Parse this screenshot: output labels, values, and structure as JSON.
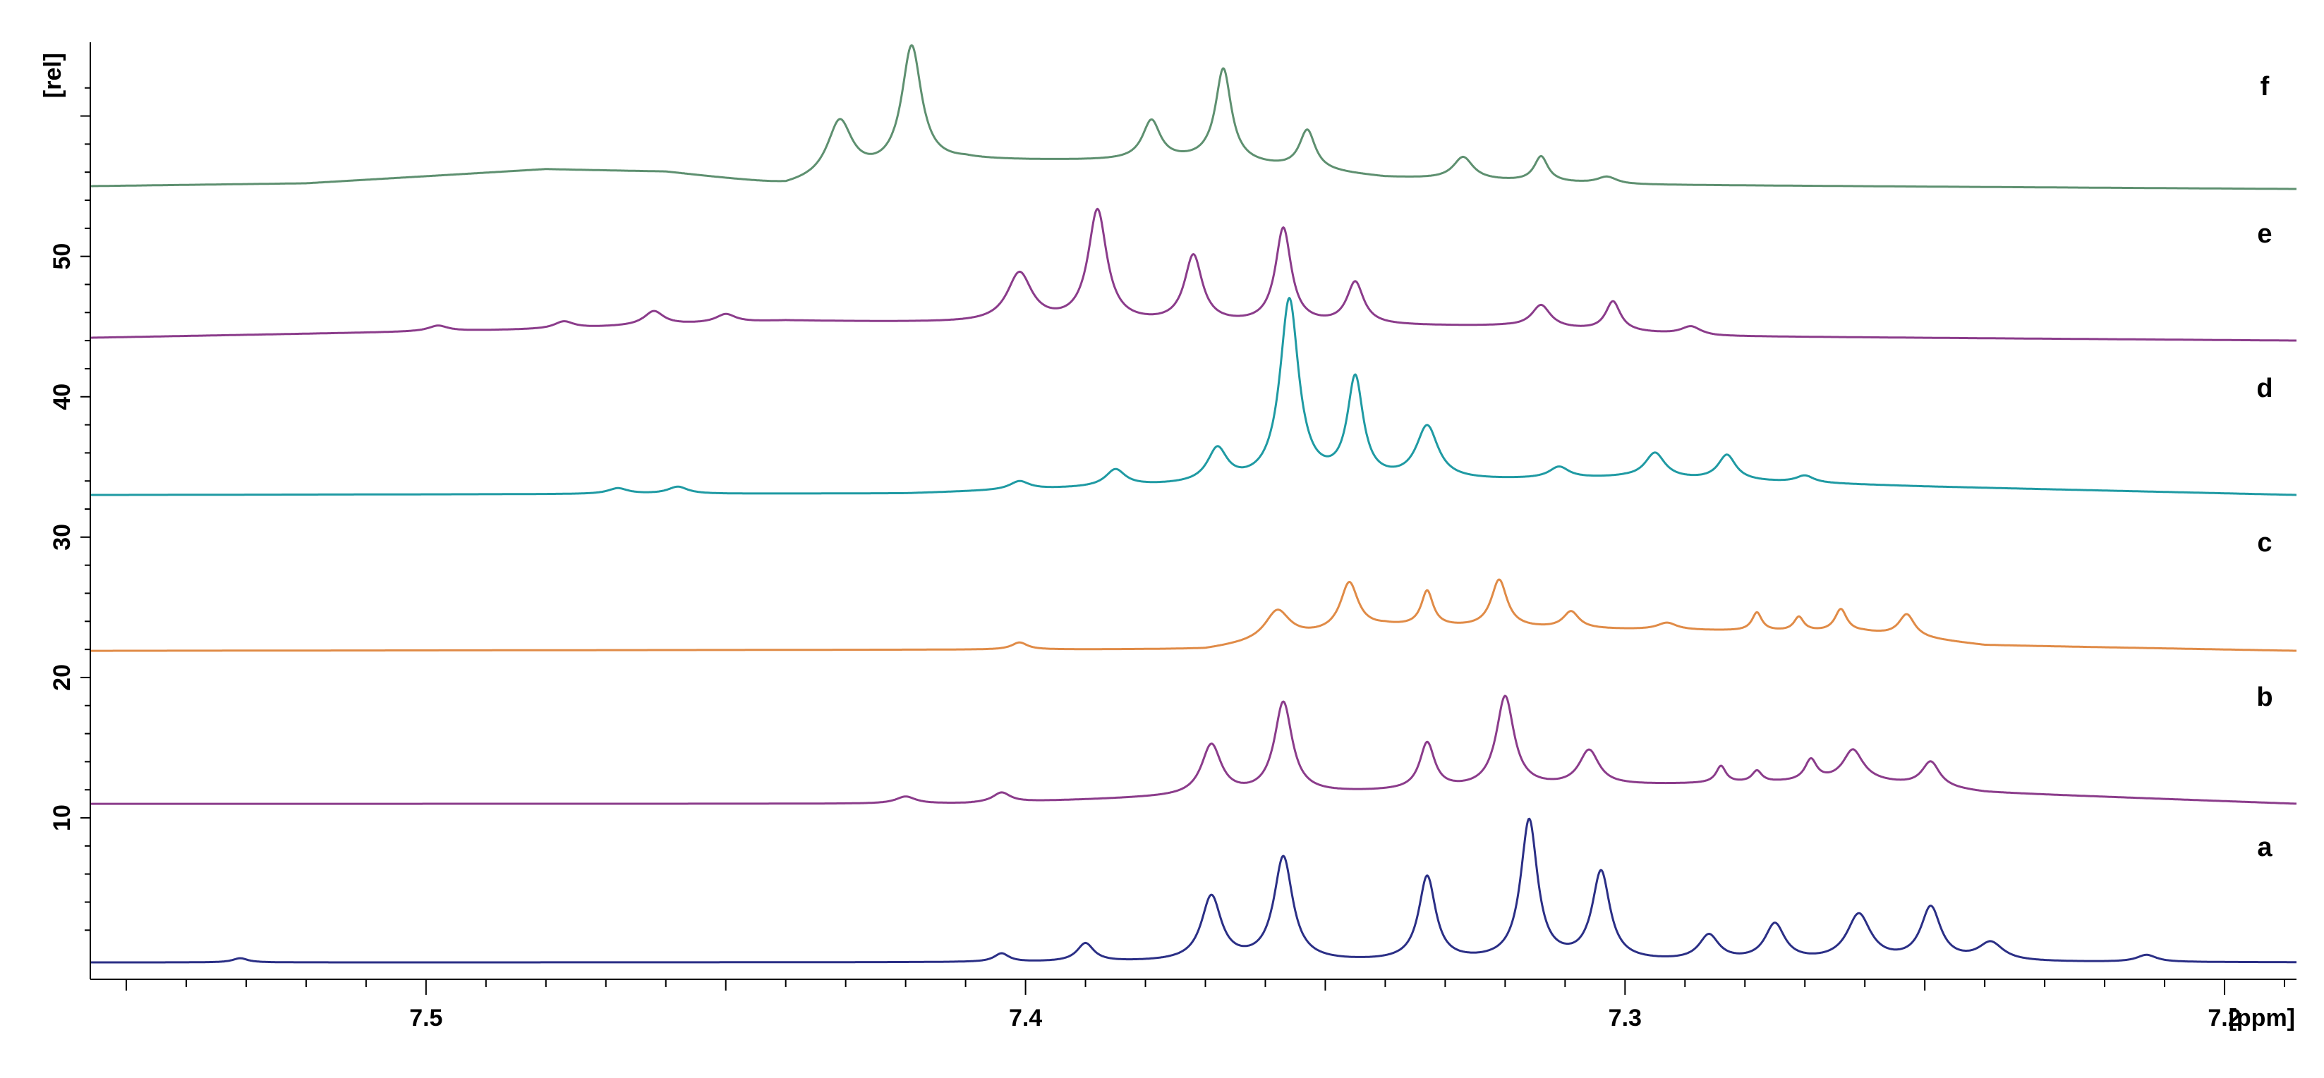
{
  "chart_data": {
    "type": "line",
    "title": "",
    "xlabel": "[ppm]",
    "ylabel": "[rel]",
    "xlim": [
      7.556,
      7.188
    ],
    "ylim": [
      -1.5,
      65
    ],
    "x_reversed": true,
    "grid": false,
    "legend": "labels at right of each trace",
    "x_ticks": [
      {
        "value": 7.5,
        "label": "7.5"
      },
      {
        "value": 7.4,
        "label": "7.4"
      },
      {
        "value": 7.3,
        "label": "7.3"
      },
      {
        "value": 7.2,
        "label": "7.2"
      }
    ],
    "y_ticks": [
      {
        "value": 10,
        "label": "10"
      },
      {
        "value": 20,
        "label": "20"
      },
      {
        "value": 30,
        "label": "30"
      },
      {
        "value": 40,
        "label": "40"
      },
      {
        "value": 50,
        "label": "50"
      }
    ],
    "series": [
      {
        "name": "a",
        "color": "#2b2f86",
        "label_y": 7.8,
        "baseline": [
          [
            7.556,
            -0.3
          ],
          [
            7.188,
            -0.3
          ]
        ],
        "peaks": [
          [
            7.531,
            0.3,
            0.0015
          ],
          [
            7.404,
            0.6,
            0.0015
          ],
          [
            7.39,
            1.3,
            0.0017
          ],
          [
            7.369,
            4.6,
            0.002
          ],
          [
            7.357,
            7.4,
            0.0019
          ],
          [
            7.333,
            6.0,
            0.0017
          ],
          [
            7.316,
            10.0,
            0.0017
          ],
          [
            7.304,
            6.3,
            0.0018
          ],
          [
            7.286,
            1.8,
            0.002
          ],
          [
            7.275,
            2.6,
            0.002
          ],
          [
            7.261,
            3.3,
            0.0024
          ],
          [
            7.249,
            3.8,
            0.002
          ],
          [
            7.239,
            1.3,
            0.0025
          ],
          [
            7.213,
            0.5,
            0.002
          ]
        ]
      },
      {
        "name": "b",
        "color": "#8b3c8b",
        "label_y": 18.5,
        "baseline": [
          [
            7.556,
            11.0
          ],
          [
            7.41,
            11.0
          ],
          [
            7.38,
            11.4
          ],
          [
            7.3,
            12.3
          ],
          [
            7.26,
            12.6
          ],
          [
            7.24,
            11.8
          ],
          [
            7.188,
            11.0
          ]
        ],
        "peaks": [
          [
            7.42,
            0.5,
            0.002
          ],
          [
            7.404,
            0.7,
            0.0018
          ],
          [
            7.369,
            3.6,
            0.002
          ],
          [
            7.357,
            6.5,
            0.0018
          ],
          [
            7.333,
            3.3,
            0.0015
          ],
          [
            7.32,
            6.5,
            0.0018
          ],
          [
            7.306,
            2.5,
            0.002
          ],
          [
            7.284,
            1.2,
            0.001
          ],
          [
            7.278,
            0.8,
            0.001
          ],
          [
            7.269,
            1.5,
            0.0012
          ],
          [
            7.262,
            2.2,
            0.002
          ],
          [
            7.249,
            1.8,
            0.0018
          ]
        ]
      },
      {
        "name": "c",
        "color": "#e08b47",
        "label_y": 29.5,
        "baseline": [
          [
            7.556,
            21.9
          ],
          [
            7.37,
            22.0
          ],
          [
            7.34,
            23.6
          ],
          [
            7.3,
            23.4
          ],
          [
            7.26,
            23.2
          ],
          [
            7.24,
            22.3
          ],
          [
            7.188,
            21.9
          ]
        ],
        "peaks": [
          [
            7.401,
            0.5,
            0.0016
          ],
          [
            7.358,
            2.1,
            0.0025
          ],
          [
            7.346,
            3.4,
            0.0018
          ],
          [
            7.333,
            2.5,
            0.0012
          ],
          [
            7.321,
            3.4,
            0.0016
          ],
          [
            7.309,
            1.2,
            0.0016
          ],
          [
            7.278,
            1.3,
            0.001
          ],
          [
            7.271,
            1.0,
            0.001
          ],
          [
            7.264,
            1.6,
            0.0012
          ],
          [
            7.253,
            1.6,
            0.0016
          ],
          [
            7.293,
            0.5,
            0.002
          ]
        ]
      },
      {
        "name": "d",
        "color": "#1f9aa3",
        "label_y": 40.5,
        "baseline": [
          [
            7.556,
            33.0
          ],
          [
            7.42,
            33.1
          ],
          [
            7.38,
            33.6
          ],
          [
            7.3,
            34.2
          ],
          [
            7.25,
            33.6
          ],
          [
            7.188,
            33.0
          ]
        ],
        "peaks": [
          [
            7.468,
            0.4,
            0.002
          ],
          [
            7.458,
            0.5,
            0.002
          ],
          [
            7.401,
            0.6,
            0.002
          ],
          [
            7.385,
            1.2,
            0.002
          ],
          [
            7.368,
            2.4,
            0.002
          ],
          [
            7.356,
            13.0,
            0.0019
          ],
          [
            7.345,
            7.2,
            0.0016
          ],
          [
            7.333,
            3.8,
            0.0022
          ],
          [
            7.311,
            0.8,
            0.002
          ],
          [
            7.295,
            1.8,
            0.002
          ],
          [
            7.283,
            1.8,
            0.0018
          ],
          [
            7.27,
            0.5,
            0.0018
          ]
        ]
      },
      {
        "name": "e",
        "color": "#8b3c8b",
        "label_y": 51.5,
        "baseline": [
          [
            7.556,
            44.2
          ],
          [
            7.48,
            44.8
          ],
          [
            7.44,
            45.4
          ],
          [
            7.4,
            45.2
          ],
          [
            7.32,
            45.0
          ],
          [
            7.285,
            44.3
          ],
          [
            7.188,
            44.0
          ]
        ],
        "peaks": [
          [
            7.498,
            0.4,
            0.002
          ],
          [
            7.477,
            0.5,
            0.002
          ],
          [
            7.462,
            1.0,
            0.002
          ],
          [
            7.45,
            0.6,
            0.002
          ],
          [
            7.401,
            3.5,
            0.0025
          ],
          [
            7.388,
            8.0,
            0.0019
          ],
          [
            7.372,
            4.8,
            0.0018
          ],
          [
            7.357,
            6.8,
            0.0016
          ],
          [
            7.345,
            3.0,
            0.0017
          ],
          [
            7.314,
            1.6,
            0.0019
          ],
          [
            7.302,
            2.1,
            0.0015
          ],
          [
            7.289,
            0.6,
            0.002
          ]
        ]
      },
      {
        "name": "f",
        "color": "#5e9070",
        "label_y": 62.0,
        "baseline": [
          [
            7.556,
            55.0
          ],
          [
            7.52,
            55.2
          ],
          [
            7.48,
            56.2
          ],
          [
            7.46,
            56.0
          ],
          [
            7.44,
            55.0
          ],
          [
            7.41,
            56.8
          ],
          [
            7.37,
            56.8
          ],
          [
            7.34,
            55.6
          ],
          [
            7.3,
            55.1
          ],
          [
            7.188,
            54.8
          ]
        ],
        "peaks": [
          [
            7.431,
            4.0,
            0.0025
          ],
          [
            7.419,
            8.6,
            0.002
          ],
          [
            7.379,
            2.8,
            0.0018
          ],
          [
            7.367,
            6.6,
            0.0016
          ],
          [
            7.353,
            2.8,
            0.0016
          ],
          [
            7.327,
            1.6,
            0.002
          ],
          [
            7.314,
            1.8,
            0.0014
          ],
          [
            7.303,
            0.5,
            0.002
          ]
        ]
      }
    ]
  }
}
